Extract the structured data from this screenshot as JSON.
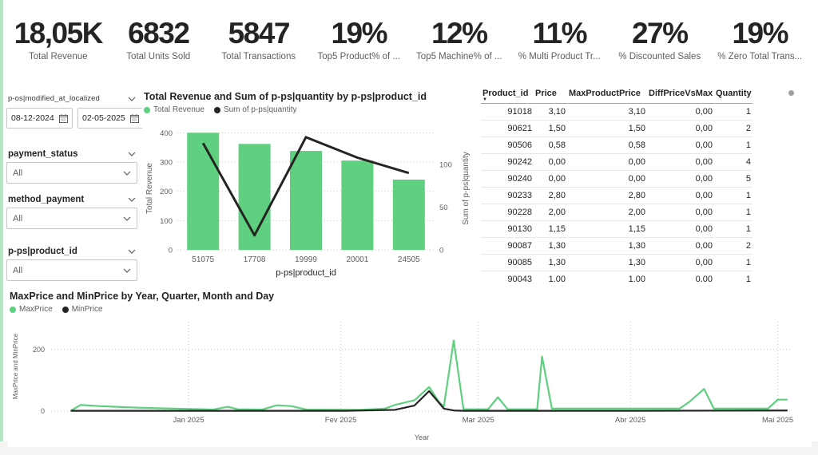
{
  "theme": {
    "accent_green": "#5FCF80",
    "line_black": "#252423",
    "text_dark": "#252423",
    "text_gray": "#605E5C",
    "grid": "#C8C6C4",
    "page_edge_green": "#B5E6C2"
  },
  "kpis": [
    {
      "value": "18,05K",
      "label": "Total Revenue"
    },
    {
      "value": "6832",
      "label": "Total Units Sold"
    },
    {
      "value": "5847",
      "label": "Total Transactions"
    },
    {
      "value": "19%",
      "label": "Top5 Product% of ..."
    },
    {
      "value": "12%",
      "label": "Top5 Machine% of ..."
    },
    {
      "value": "11%",
      "label": "% Multi Product Tr..."
    },
    {
      "value": "27%",
      "label": "% Discounted Sales"
    },
    {
      "value": "19%",
      "label": "% Zero Total Trans..."
    }
  ],
  "filters": {
    "date_slicer": {
      "label": "p-os|modified_at_localized",
      "start_date": "08-12-2024",
      "end_date": "02-05-2025"
    },
    "dropdowns": [
      {
        "label": "payment_status",
        "value": "All"
      },
      {
        "label": "method_payment",
        "value": "All"
      },
      {
        "label": "p-ps|product_id",
        "value": "All"
      }
    ]
  },
  "table": {
    "columns": [
      "Product_id",
      "Price",
      "MaxProductPrice",
      "DiffPriceVsMax",
      "Quantity"
    ],
    "sort_column": "Product_id",
    "rows": [
      [
        "91018",
        "3,10",
        "3,10",
        "0,00",
        "1"
      ],
      [
        "90621",
        "1,50",
        "1,50",
        "0,00",
        "2"
      ],
      [
        "90506",
        "0,58",
        "0,58",
        "0,00",
        "1"
      ],
      [
        "90242",
        "0,00",
        "0,00",
        "0,00",
        "4"
      ],
      [
        "90240",
        "0,00",
        "0,00",
        "0,00",
        "5"
      ],
      [
        "90233",
        "2,80",
        "2,80",
        "0,00",
        "1"
      ],
      [
        "90228",
        "2,00",
        "2,00",
        "0,00",
        "1"
      ],
      [
        "90130",
        "1,15",
        "1,15",
        "0,00",
        "1"
      ],
      [
        "90087",
        "1,30",
        "1,30",
        "0,00",
        "2"
      ],
      [
        "90085",
        "1,30",
        "1,30",
        "0,00",
        "1"
      ],
      [
        "90043",
        "1,00",
        "1,00",
        "0,00",
        "1"
      ]
    ]
  },
  "chart_data": [
    {
      "type": "bar",
      "title": "Total Revenue and Sum of p-ps|quantity by p-ps|product_id",
      "categories": [
        "51075",
        "17708",
        "19999",
        "20001",
        "24505"
      ],
      "series": [
        {
          "name": "Total Revenue",
          "type": "bar",
          "axis": "left",
          "color_key": "accent_green",
          "values": [
            400,
            362,
            338,
            305,
            240
          ]
        },
        {
          "name": "Sum of p-ps|quantity",
          "type": "line",
          "axis": "right",
          "color_key": "line_black",
          "values": [
            125,
            17,
            132,
            108,
            90
          ]
        }
      ],
      "xlabel": "p-ps|product_id",
      "ylabel_left": "Total Revenue",
      "ylabel_right": "Sum of p-ps|quantity",
      "yticks_left": [
        0,
        100,
        200,
        300,
        400
      ],
      "yticks_right": [
        0,
        50,
        100
      ],
      "ylim_left": [
        0,
        420
      ],
      "ylim_right": [
        0,
        144
      ],
      "legend_position": "top"
    },
    {
      "type": "line",
      "title": "MaxPrice and MinPrice by Year, Quarter, Month and Day",
      "xlabel": "Year",
      "ylabel": "MaxPrice and MinPrice",
      "yticks": [
        0,
        200
      ],
      "ylim": [
        0,
        290
      ],
      "x_domain_days": 151,
      "x_domain_note": "days since 04-12-2024, axis ends 04-05-2025",
      "xticks": [
        {
          "label": "Jan 2025",
          "day": 28
        },
        {
          "label": "Fev 2025",
          "day": 59
        },
        {
          "label": "Mar 2025",
          "day": 87
        },
        {
          "label": "Abr 2025",
          "day": 118
        },
        {
          "label": "Mai 2025",
          "day": 148
        }
      ],
      "legend_position": "top",
      "series": [
        {
          "name": "MaxPrice",
          "color_key": "accent_green",
          "points": [
            [
              4,
              1
            ],
            [
              6,
              20
            ],
            [
              10,
              16
            ],
            [
              18,
              11
            ],
            [
              28,
              7
            ],
            [
              33,
              5
            ],
            [
              36,
              14
            ],
            [
              38,
              6
            ],
            [
              43,
              5
            ],
            [
              46,
              19
            ],
            [
              49,
              16
            ],
            [
              52,
              5
            ],
            [
              63,
              4
            ],
            [
              68,
              8
            ],
            [
              70,
              20
            ],
            [
              74,
              35
            ],
            [
              77,
              78
            ],
            [
              79,
              30
            ],
            [
              80,
              15
            ],
            [
              82,
              229
            ],
            [
              84,
              6
            ],
            [
              89,
              6
            ],
            [
              91,
              45
            ],
            [
              93,
              6
            ],
            [
              99,
              6
            ],
            [
              100,
              177
            ],
            [
              102,
              8
            ],
            [
              128,
              8
            ],
            [
              130,
              30
            ],
            [
              133,
              72
            ],
            [
              135,
              8
            ],
            [
              146,
              8
            ],
            [
              148,
              37
            ],
            [
              150,
              37
            ]
          ]
        },
        {
          "name": "MinPrice",
          "color_key": "line_black",
          "points": [
            [
              4,
              1
            ],
            [
              28,
              1
            ],
            [
              60,
              1
            ],
            [
              70,
              4
            ],
            [
              74,
              18
            ],
            [
              77,
              65
            ],
            [
              80,
              8
            ],
            [
              82,
              2
            ],
            [
              84,
              1
            ],
            [
              100,
              1
            ],
            [
              120,
              1
            ],
            [
              150,
              2
            ]
          ]
        }
      ]
    }
  ]
}
